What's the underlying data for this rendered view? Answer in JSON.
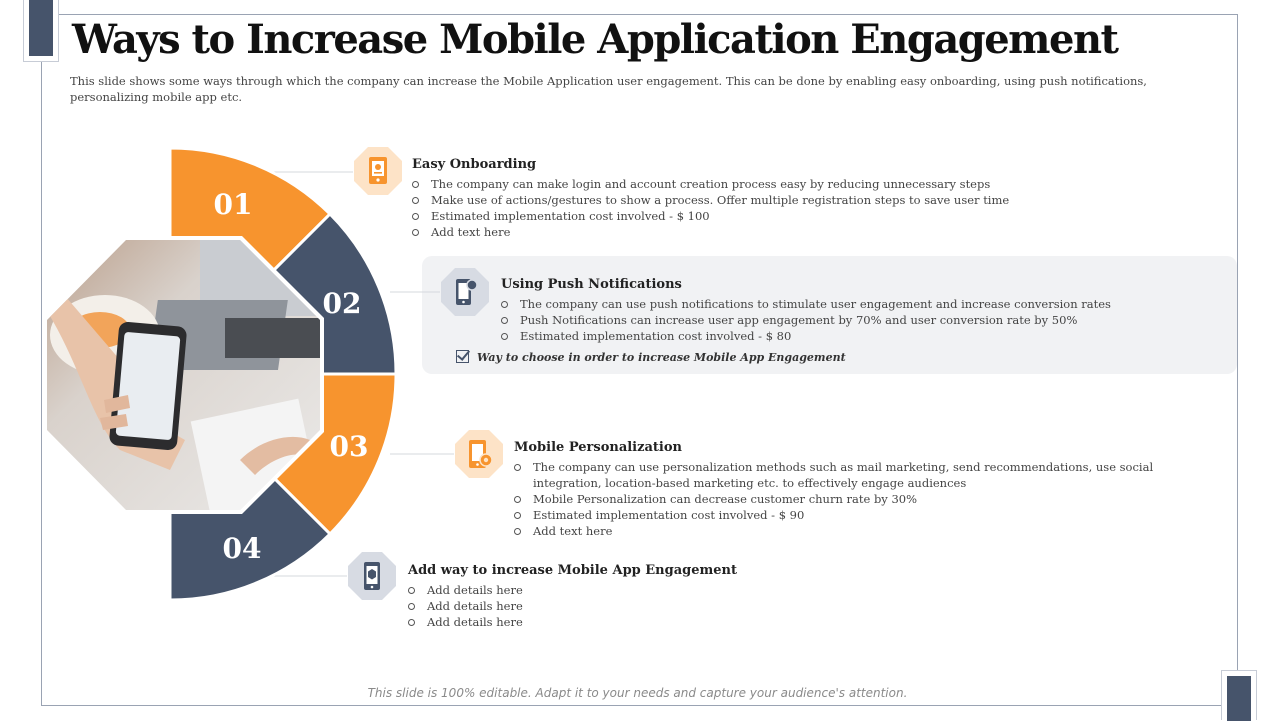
{
  "header": {
    "title": "Ways to Increase Mobile Application Engagement",
    "subtitle": "This slide shows some ways through which the company can increase the Mobile Application user engagement.  This can be done by enabling easy onboarding, using push notifications, personalizing mobile app etc."
  },
  "colors": {
    "orange": "#f7942e",
    "slate": "#46546b",
    "icon_bg_orange": "#fde3c7",
    "icon_bg_slate": "#d7dbe3",
    "highlight_bg": "#f1f2f4"
  },
  "segments": [
    {
      "number": "01",
      "color": "orange"
    },
    {
      "number": "02",
      "color": "slate"
    },
    {
      "number": "03",
      "color": "orange"
    },
    {
      "number": "04",
      "color": "slate"
    }
  ],
  "photo": {
    "description_icon": "woman-holding-smartphone-photo"
  },
  "sections": [
    {
      "icon": "tablet-app-icon",
      "title": "Easy Onboarding",
      "bullets": [
        "The company can make login and account creation process easy by reducing unnecessary steps",
        "Make use of actions/gestures  to show a process. Offer multiple registration  steps to save user time",
        "Estimated implementation  cost involved - $ 100",
        "Add text here"
      ]
    },
    {
      "icon": "phone-notification-icon",
      "title": "Using Push Notifications",
      "bullets": [
        "The company can use push notifications to stimulate user engagement  and increase conversion rates",
        "Push Notifications can increase user app engagement  by 70% and user conversion rate by 50%",
        "Estimated implementation  cost involved - $ 80"
      ],
      "note": "Way to choose  in order to increase Mobile App Engagement"
    },
    {
      "icon": "phone-settings-icon",
      "title": "Mobile Personalization",
      "bullets": [
        "The company can use personalization methods  such as mail marketing,  send recommendations,  use social integration,  location-based  marketing  etc. to effectively engage  audiences",
        "Mobile Personalization  can decrease  customer churn rate by 30%",
        "Estimated implementation  cost involved - $ 90",
        "Add text here"
      ]
    },
    {
      "icon": "phone-app-icon",
      "title": "Add way to increase  Mobile App Engagement",
      "bullets": [
        "Add details here",
        "Add details here",
        "Add details here"
      ]
    }
  ],
  "footer": "This slide is 100% editable. Adapt it to your needs and capture your audience's attention."
}
